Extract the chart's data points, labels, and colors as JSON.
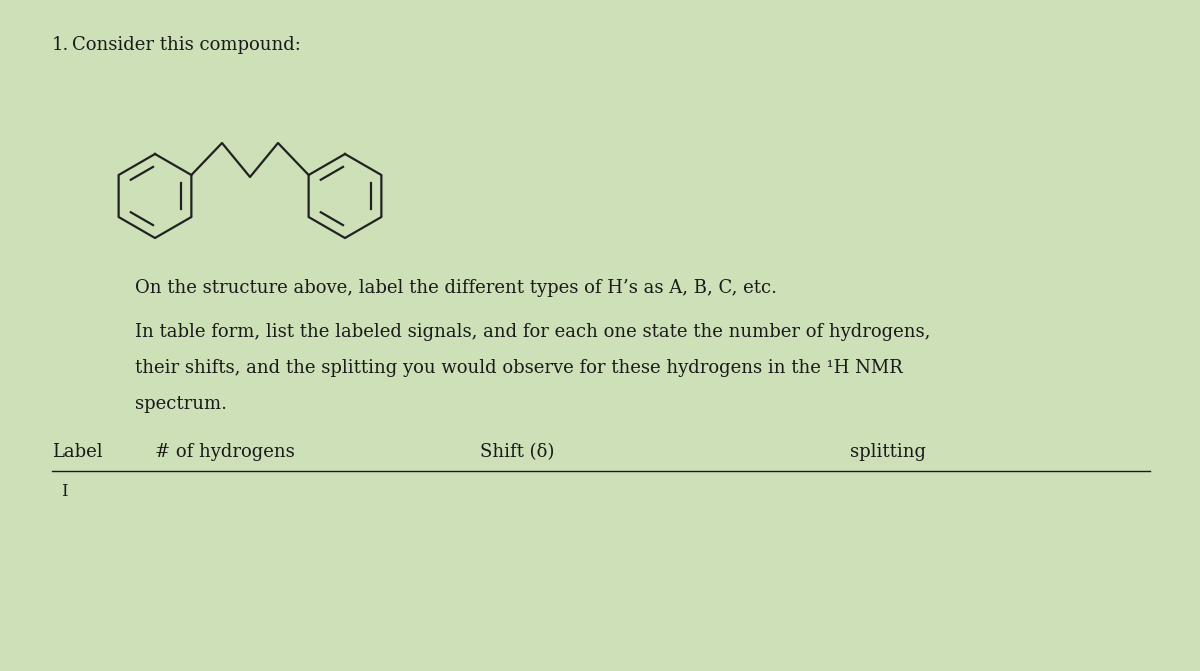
{
  "title_number": "1.",
  "title_text": "Consider this compound:",
  "instruction1": "On the structure above, label the different types of H’s as A, B, C, etc.",
  "instruction2": "In table form, list the labeled signals, and for each one state the number of hydrogens,",
  "instruction2b": "their shifts, and the splitting you would observe for these hydrogens in the ¹H NMR",
  "instruction2c": "spectrum.",
  "col_label": "Label",
  "col_hydrogens": "# of hydrogens",
  "col_shift": "Shift (δ)",
  "col_splitting": "splitting",
  "bg_color": "#d4e8c2",
  "text_color": "#1a1a1a",
  "font_size_body": 13,
  "font_size_title": 13
}
